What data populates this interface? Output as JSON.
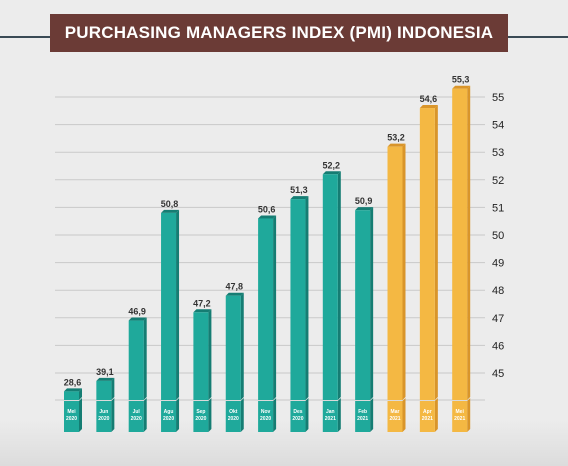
{
  "chart_data": {
    "type": "bar",
    "title": "PURCHASING MANAGERS INDEX (PMI) INDONESIA",
    "categories": [
      [
        "Mei",
        "2020"
      ],
      [
        "Jun",
        "2020"
      ],
      [
        "Jul",
        "2020"
      ],
      [
        "Agu",
        "2020"
      ],
      [
        "Sep",
        "2020"
      ],
      [
        "Okt",
        "2020"
      ],
      [
        "Nov",
        "2020"
      ],
      [
        "Des",
        "2020"
      ],
      [
        "Jan",
        "2021"
      ],
      [
        "Feb",
        "2021"
      ],
      [
        "Mar",
        "2021"
      ],
      [
        "Apr",
        "2021"
      ],
      [
        "Mei",
        "2021"
      ]
    ],
    "values": [
      28.6,
      39.1,
      46.9,
      50.8,
      47.2,
      47.8,
      50.6,
      51.3,
      52.2,
      50.9,
      53.2,
      54.6,
      55.3
    ],
    "value_labels": [
      "28,6",
      "39,1",
      "46,9",
      "50,8",
      "47,2",
      "47,8",
      "50,6",
      "51,3",
      "52,2",
      "50,9",
      "53,2",
      "54,6",
      "55,3"
    ],
    "highlight_from_index": 10,
    "yticks": [
      45,
      46,
      47,
      48,
      49,
      50,
      51,
      52,
      53,
      54,
      55
    ],
    "ylim": [
      44,
      55.5
    ],
    "axis_break": true,
    "grid": true,
    "colors": {
      "bar": "#1fa99b",
      "bar_shadow": "#157d73",
      "highlight": "#f4b843",
      "highlight_shadow": "#d9952a",
      "grid": "#c9c9c9",
      "title_bg": "#6b3b36"
    }
  }
}
